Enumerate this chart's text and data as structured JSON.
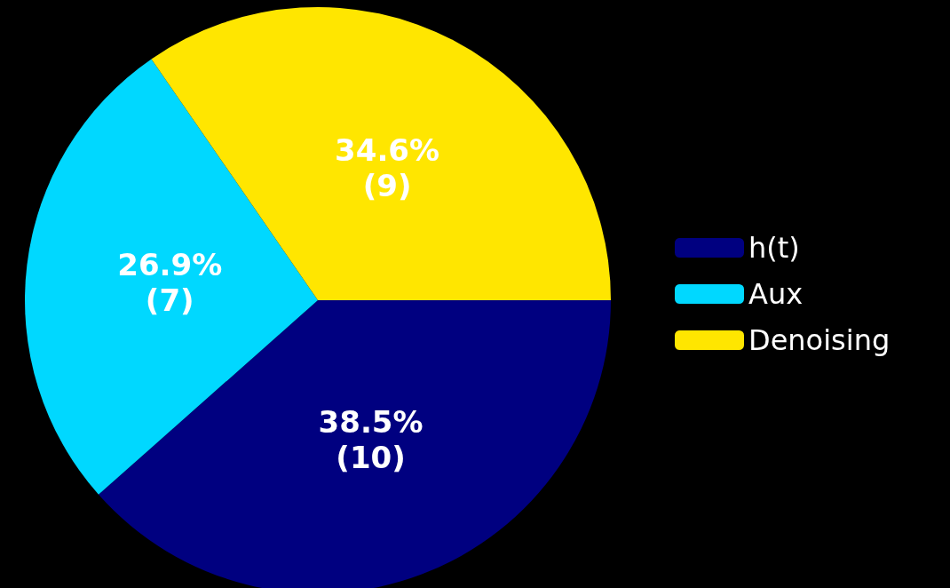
{
  "chart_data": {
    "type": "pie",
    "categories": [
      "h(t)",
      "Aux",
      "Denoising"
    ],
    "values": [
      10,
      7,
      9
    ],
    "colors": [
      "#000080",
      "#00d8ff",
      "#ffe600"
    ],
    "value_labels": [
      "38.5%\n(10)",
      "26.9%\n(7)",
      "34.6%\n(9)"
    ],
    "legend": "right"
  }
}
